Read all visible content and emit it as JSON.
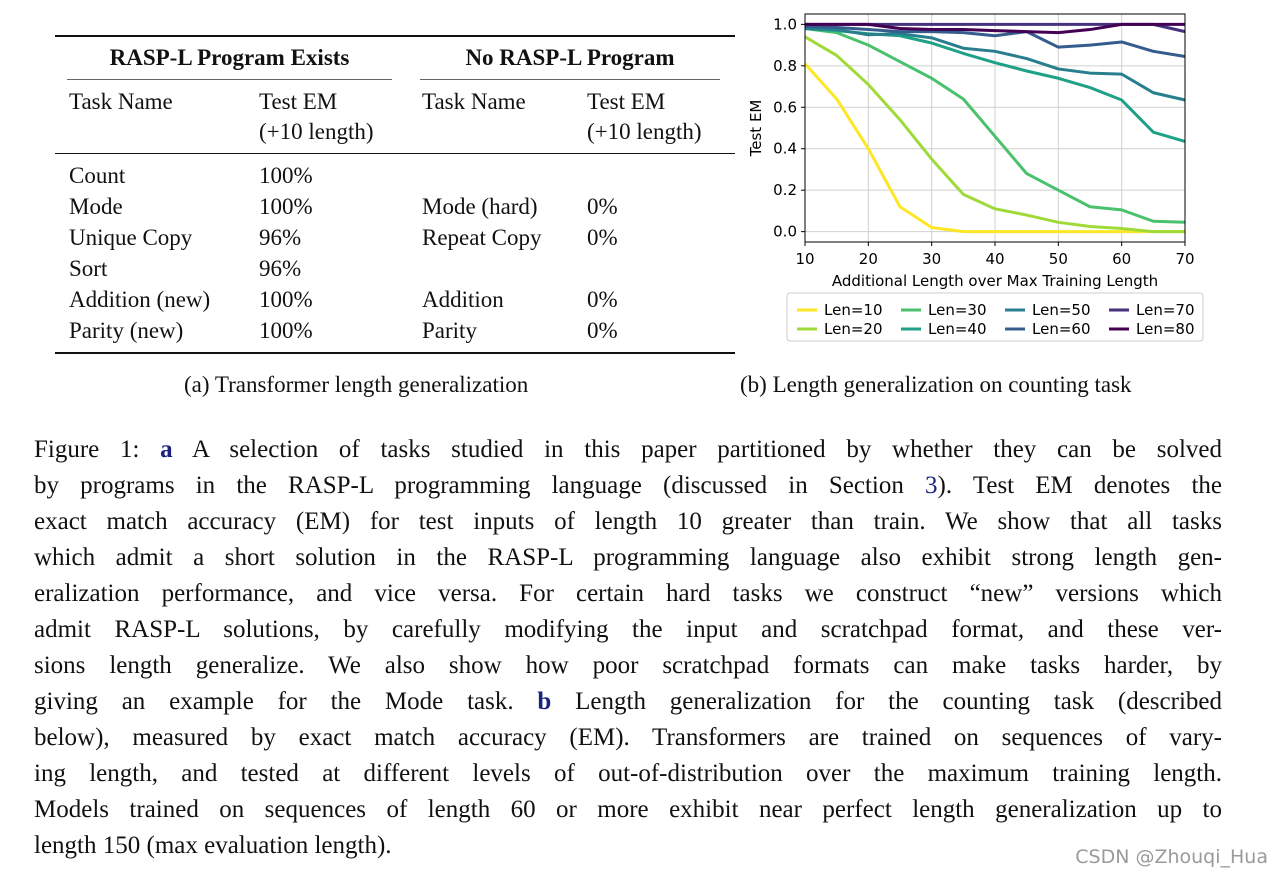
{
  "table": {
    "group_left": "RASP-L Program Exists",
    "group_right": "No RASP-L Program",
    "col_task": "Task Name",
    "col_em_1": "Test EM",
    "col_em_2": "(+10 length)",
    "left_rows": [
      {
        "task": "Count",
        "em": "100%"
      },
      {
        "task": "Mode",
        "em": "100%"
      },
      {
        "task": "Unique Copy",
        "em": "96%"
      },
      {
        "task": "Sort",
        "em": "96%"
      },
      {
        "task": "Addition (new)",
        "em": "100%"
      },
      {
        "task": "Parity (new)",
        "em": "100%"
      }
    ],
    "right_rows": [
      {
        "task": "",
        "em": ""
      },
      {
        "task": "Mode (hard)",
        "em": "0%"
      },
      {
        "task": "Repeat Copy",
        "em": "0%"
      },
      {
        "task": "",
        "em": ""
      },
      {
        "task": "Addition",
        "em": "0%"
      },
      {
        "task": "Parity",
        "em": "0%"
      }
    ],
    "caption": "(a) Transformer length generalization"
  },
  "chart_caption": "(b) Length generalization on counting task",
  "chart_data": {
    "type": "line",
    "xlabel": "Additional Length over Max Training Length",
    "ylabel": "Test EM",
    "xlim": [
      10,
      70
    ],
    "ylim": [
      -0.05,
      1.05
    ],
    "xticks": [
      "10",
      "20",
      "30",
      "40",
      "50",
      "60",
      "70"
    ],
    "yticks": [
      "0.0",
      "0.2",
      "0.4",
      "0.6",
      "0.8",
      "1.0"
    ],
    "grid": true,
    "legend_placement": "below",
    "x": [
      10,
      15,
      20,
      25,
      30,
      35,
      40,
      45,
      50,
      55,
      60,
      65,
      70
    ],
    "series": [
      {
        "name": "Len=10",
        "color": "#fde725",
        "values": [
          0.81,
          0.64,
          0.4,
          0.12,
          0.02,
          0,
          0,
          0,
          0,
          0,
          0,
          0,
          0
        ]
      },
      {
        "name": "Len=20",
        "color": "#a0da39",
        "values": [
          0.94,
          0.85,
          0.71,
          0.54,
          0.35,
          0.18,
          0.11,
          0.08,
          0.045,
          0.025,
          0.015,
          0,
          0
        ]
      },
      {
        "name": "Len=30",
        "color": "#4ac16d",
        "values": [
          0.98,
          0.96,
          0.9,
          0.82,
          0.74,
          0.64,
          0.46,
          0.28,
          0.2,
          0.12,
          0.105,
          0.05,
          0.045
        ]
      },
      {
        "name": "Len=40",
        "color": "#1fa187",
        "values": [
          0.98,
          0.97,
          0.955,
          0.945,
          0.91,
          0.86,
          0.815,
          0.775,
          0.74,
          0.695,
          0.635,
          0.48,
          0.435
        ]
      },
      {
        "name": "Len=50",
        "color": "#277f8e",
        "values": [
          0.98,
          0.975,
          0.95,
          0.955,
          0.935,
          0.885,
          0.87,
          0.835,
          0.785,
          0.765,
          0.76,
          0.67,
          0.635
        ]
      },
      {
        "name": "Len=60",
        "color": "#365c8d",
        "values": [
          0.99,
          0.985,
          0.975,
          0.965,
          0.965,
          0.96,
          0.945,
          0.965,
          0.89,
          0.9,
          0.915,
          0.87,
          0.845
        ]
      },
      {
        "name": "Len=70",
        "color": "#46327e",
        "values": [
          1,
          1,
          1,
          1,
          1,
          1,
          1,
          1,
          1,
          1,
          1,
          1,
          0.965
        ]
      },
      {
        "name": "Len=80",
        "color": "#440154",
        "values": [
          1,
          1,
          1,
          0.98,
          0.975,
          0.975,
          0.97,
          0.965,
          0.96,
          0.975,
          1,
          1,
          1
        ]
      }
    ]
  },
  "figure_caption": {
    "lines": [
      [
        {
          "t": "Figure 1: "
        },
        {
          "t": "a",
          "s": "b"
        },
        {
          "t": " A selection of tasks studied in this paper partitioned by whether they can be solved"
        }
      ],
      [
        {
          "t": "by programs in the RASP-L programming language (discussed in Section "
        },
        {
          "t": "3",
          "s": "lnk"
        },
        {
          "t": "). Test EM denotes the"
        }
      ],
      [
        {
          "t": "exact match accuracy (EM) for test inputs of length 10 greater than train. We show that all tasks"
        }
      ],
      [
        {
          "t": "which admit a short solution in the RASP-L programming language also exhibit strong length gen-"
        }
      ],
      [
        {
          "t": "eralization performance, and vice versa. For certain hard tasks we construct “new” versions which"
        }
      ],
      [
        {
          "t": "admit RASP-L solutions, by carefully modifying the input and scratchpad format, and these ver-"
        }
      ],
      [
        {
          "t": "sions length generalize.  We also show how poor scratchpad formats can make tasks harder, by"
        }
      ],
      [
        {
          "t": "giving an example for the Mode task. "
        },
        {
          "t": "b",
          "s": "b"
        },
        {
          "t": " Length generalization for the counting task (described"
        }
      ],
      [
        {
          "t": "below), measured by exact match accuracy (EM). Transformers are trained on sequences of vary-"
        }
      ],
      [
        {
          "t": "ing length, and tested at different levels of out-of-distribution over the maximum training length."
        }
      ],
      [
        {
          "t": "Models trained on sequences of length 60 or more exhibit near perfect length generalization up to"
        }
      ],
      [
        {
          "t": "length 150 (max evaluation length)."
        }
      ]
    ]
  },
  "watermark": "CSDN @Zhouqi_Hua"
}
